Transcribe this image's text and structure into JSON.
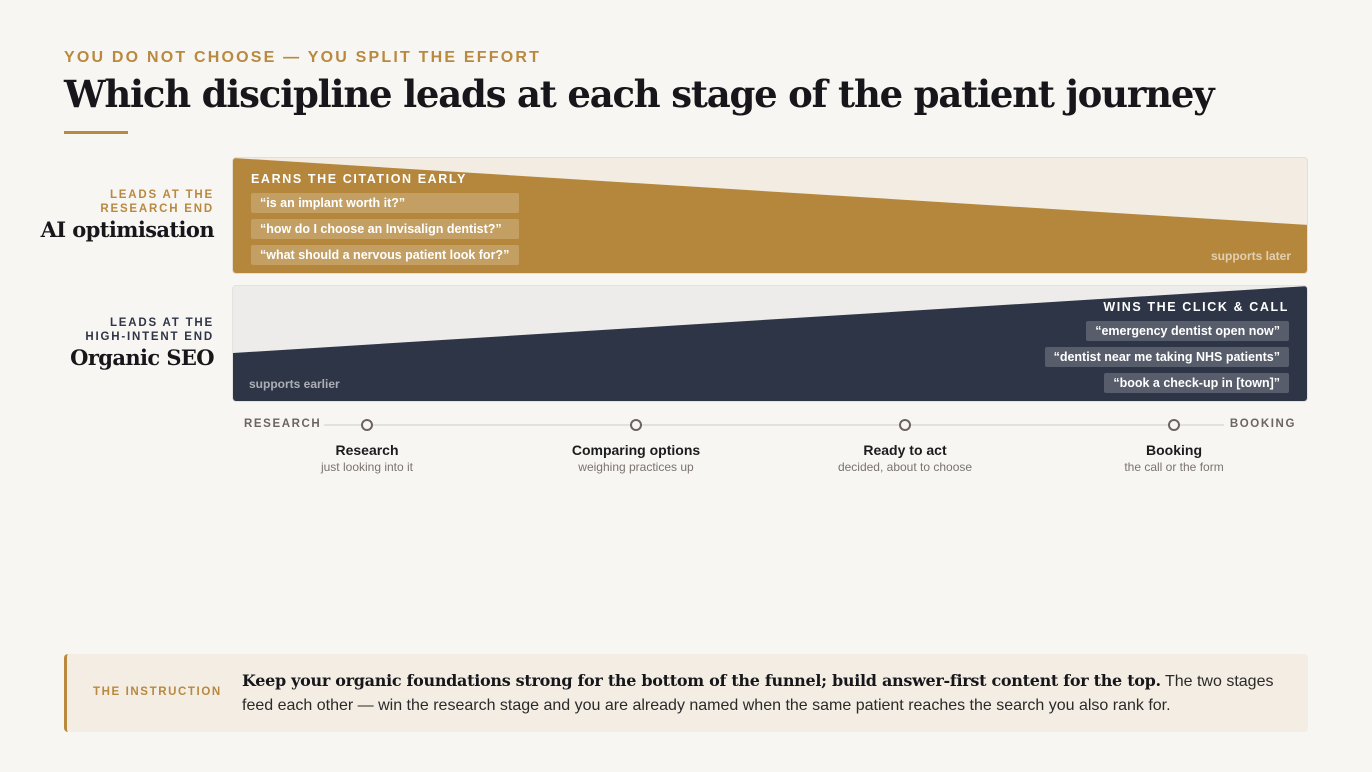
{
  "header": {
    "eyebrow": "YOU DO NOT CHOOSE — YOU SPLIT THE EFFORT",
    "title": "Which discipline leads at each stage of the patient journey"
  },
  "rows": {
    "ai": {
      "tag": "LEADS AT THE RESEARCH END",
      "name": "AI optimisation",
      "heading": "EARNS THE CITATION EARLY",
      "queries": [
        "“is an implant worth it?”",
        "“how do I choose an Invisalign dentist?”",
        "“what should a nervous patient look for?”"
      ],
      "support": "supports later",
      "color": "#b5873c"
    },
    "seo": {
      "tag": "LEADS AT THE HIGH-INTENT END",
      "name": "Organic SEO",
      "heading": "WINS THE CLICK & CALL",
      "queries": [
        "“emergency dentist open now”",
        "“dentist near me taking NHS patients”",
        "“book a check-up in [town]”"
      ],
      "support": "supports earlier",
      "color": "#2e3546"
    }
  },
  "axis": {
    "start": "RESEARCH",
    "end": "BOOKING",
    "stages": [
      {
        "name": "Research",
        "sub": "just looking into it"
      },
      {
        "name": "Comparing options",
        "sub": "weighing practices up"
      },
      {
        "name": "Ready to act",
        "sub": "decided, about to choose"
      },
      {
        "name": "Booking",
        "sub": "the call or the form"
      }
    ]
  },
  "instruction": {
    "label": "THE INSTRUCTION",
    "strong": "Keep your organic foundations strong for the bottom of the funnel; build answer-first content for the top.",
    "text": " The two stages feed each other — win the research stage and you are already named when the same patient reaches the search you also rank for."
  }
}
